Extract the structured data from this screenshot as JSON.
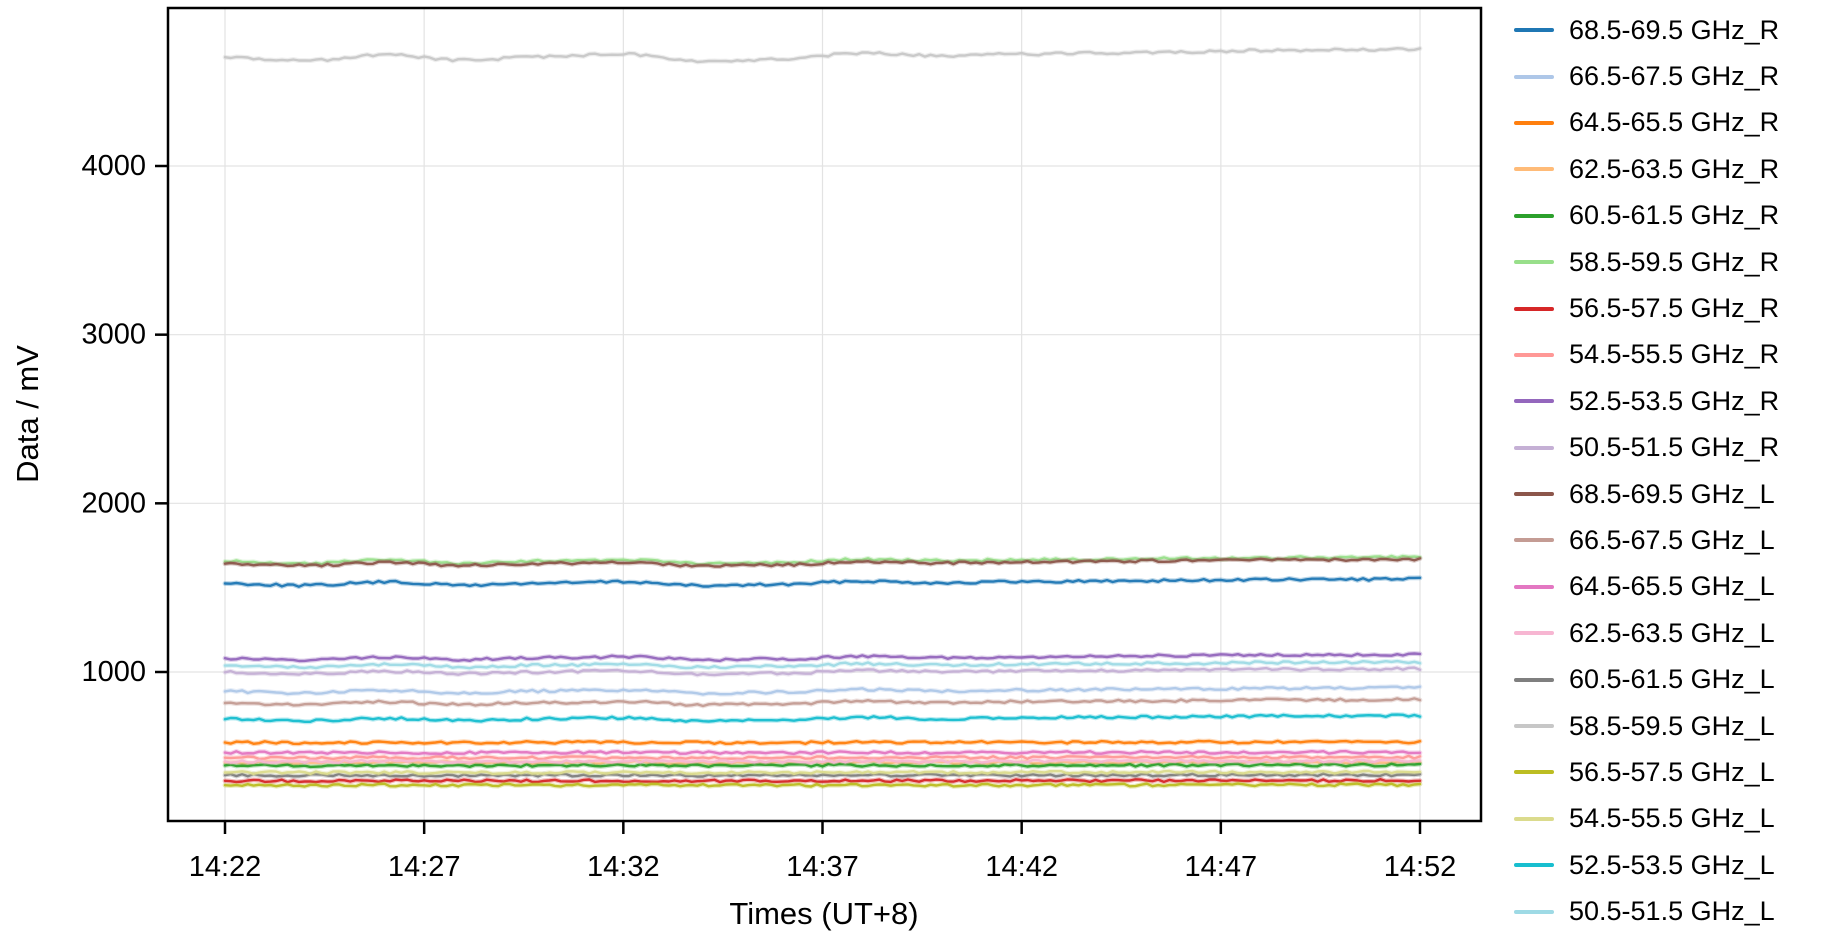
{
  "chart_data": {
    "type": "line",
    "title": "",
    "xlabel": "Times (UT+8)",
    "ylabel": "Data / mV",
    "x": [
      "14:22",
      "14:24",
      "14:26",
      "14:28",
      "14:30",
      "14:32",
      "14:34",
      "14:36",
      "14:38",
      "14:40",
      "14:42",
      "14:44",
      "14:46",
      "14:48",
      "14:50",
      "14:52"
    ],
    "xticks": [
      "14:22",
      "14:27",
      "14:32",
      "14:37",
      "14:42",
      "14:47",
      "14:52"
    ],
    "yticks": [
      1000,
      2000,
      3000,
      4000
    ],
    "ylim": [
      115,
      4940
    ],
    "grid": true,
    "legend_position": "right",
    "series": [
      {
        "name": "68.5-69.5 GHz_R",
        "color": "#1f77b4",
        "values": [
          1525,
          1513,
          1533,
          1515,
          1527,
          1535,
          1511,
          1519,
          1539,
          1529,
          1535,
          1539,
          1543,
          1547,
          1549,
          1551
        ]
      },
      {
        "name": "66.5-67.5 GHz_R",
        "color": "#aec7e8",
        "values": [
          885,
          875,
          891,
          877,
          887,
          893,
          874,
          880,
          896,
          888,
          893,
          896,
          899,
          903,
          904,
          906
        ]
      },
      {
        "name": "64.5-65.5 GHz_R",
        "color": "#ff7f0e",
        "values": [
          582,
          581,
          583,
          581,
          582,
          583,
          581,
          581,
          583,
          582,
          583,
          583,
          584,
          584,
          584,
          585
        ]
      },
      {
        "name": "62.5-63.5 GHz_R",
        "color": "#ffbb78",
        "values": [
          463,
          462,
          464,
          462,
          463,
          464,
          462,
          462,
          464,
          463,
          464,
          464,
          465,
          465,
          465,
          466
        ]
      },
      {
        "name": "60.5-61.5 GHz_R",
        "color": "#2ca02c",
        "values": [
          446,
          445,
          447,
          445,
          446,
          447,
          445,
          445,
          447,
          446,
          447,
          447,
          448,
          448,
          448,
          449
        ]
      },
      {
        "name": "58.5-59.5 GHz_R",
        "color": "#98df8a",
        "values": [
          1655,
          1643,
          1663,
          1645,
          1657,
          1665,
          1641,
          1649,
          1669,
          1659,
          1665,
          1669,
          1673,
          1677,
          1679,
          1681
        ]
      },
      {
        "name": "56.5-57.5 GHz_R",
        "color": "#d62728",
        "values": [
          355,
          354,
          356,
          354,
          355,
          356,
          354,
          354,
          356,
          355,
          356,
          356,
          356,
          357,
          357,
          357
        ]
      },
      {
        "name": "54.5-55.5 GHz_R",
        "color": "#ff9896",
        "values": [
          492,
          491,
          493,
          491,
          492,
          493,
          491,
          491,
          493,
          492,
          493,
          493,
          494,
          494,
          494,
          495
        ]
      },
      {
        "name": "52.5-53.5 GHz_R",
        "color": "#9467bd",
        "values": [
          1082,
          1072,
          1088,
          1074,
          1084,
          1090,
          1071,
          1077,
          1093,
          1085,
          1090,
          1093,
          1096,
          1100,
          1101,
          1103
        ]
      },
      {
        "name": "50.5-51.5 GHz_R",
        "color": "#c5b0d5",
        "values": [
          998,
          988,
          1004,
          990,
          1000,
          1006,
          987,
          993,
          1009,
          1001,
          1006,
          1009,
          1012,
          1016,
          1017,
          1019
        ]
      },
      {
        "name": "68.5-69.5 GHz_L",
        "color": "#8c564b",
        "values": [
          1642,
          1630,
          1650,
          1632,
          1644,
          1652,
          1628,
          1636,
          1656,
          1646,
          1652,
          1656,
          1660,
          1664,
          1666,
          1668
        ]
      },
      {
        "name": "66.5-67.5 GHz_L",
        "color": "#c49c94",
        "values": [
          816,
          806,
          822,
          808,
          818,
          824,
          805,
          811,
          827,
          819,
          824,
          827,
          830,
          834,
          835,
          837
        ]
      },
      {
        "name": "64.5-65.5 GHz_L",
        "color": "#e377c2",
        "values": [
          522,
          521,
          523,
          521,
          522,
          523,
          521,
          521,
          523,
          522,
          523,
          523,
          524,
          524,
          524,
          525
        ]
      },
      {
        "name": "62.5-63.5 GHz_L",
        "color": "#f7b6d2",
        "values": [
          470,
          469,
          471,
          469,
          470,
          471,
          469,
          469,
          471,
          470,
          471,
          471,
          472,
          472,
          472,
          473
        ]
      },
      {
        "name": "60.5-61.5 GHz_L",
        "color": "#7f7f7f",
        "values": [
          388,
          387,
          389,
          387,
          388,
          389,
          387,
          387,
          389,
          388,
          389,
          389,
          389,
          390,
          390,
          390
        ]
      },
      {
        "name": "58.5-59.5 GHz_L",
        "color": "#c7c7c7",
        "values": [
          4645,
          4623,
          4659,
          4627,
          4649,
          4663,
          4620,
          4634,
          4670,
          4652,
          4663,
          4670,
          4677,
          4685,
          4688,
          4692
        ]
      },
      {
        "name": "56.5-57.5 GHz_L",
        "color": "#bcbd22",
        "values": [
          329,
          328,
          330,
          328,
          329,
          330,
          328,
          328,
          330,
          329,
          330,
          330,
          330,
          331,
          331,
          331
        ]
      },
      {
        "name": "54.5-55.5 GHz_L",
        "color": "#dbdb8d",
        "values": [
          404,
          403,
          405,
          403,
          404,
          405,
          403,
          403,
          405,
          404,
          405,
          405,
          406,
          406,
          406,
          407
        ]
      },
      {
        "name": "52.5-53.5 GHz_L",
        "color": "#17becf",
        "values": [
          720,
          710,
          726,
          712,
          722,
          728,
          709,
          715,
          731,
          723,
          728,
          731,
          734,
          738,
          739,
          741
        ]
      },
      {
        "name": "50.5-51.5 GHz_L",
        "color": "#9edae5",
        "values": [
          1038,
          1028,
          1044,
          1030,
          1040,
          1046,
          1027,
          1033,
          1049,
          1041,
          1046,
          1049,
          1052,
          1056,
          1057,
          1059
        ]
      }
    ],
    "style": {
      "grid_color": "#e3e3e3",
      "axis_color": "#000000",
      "background": "#ffffff"
    }
  }
}
